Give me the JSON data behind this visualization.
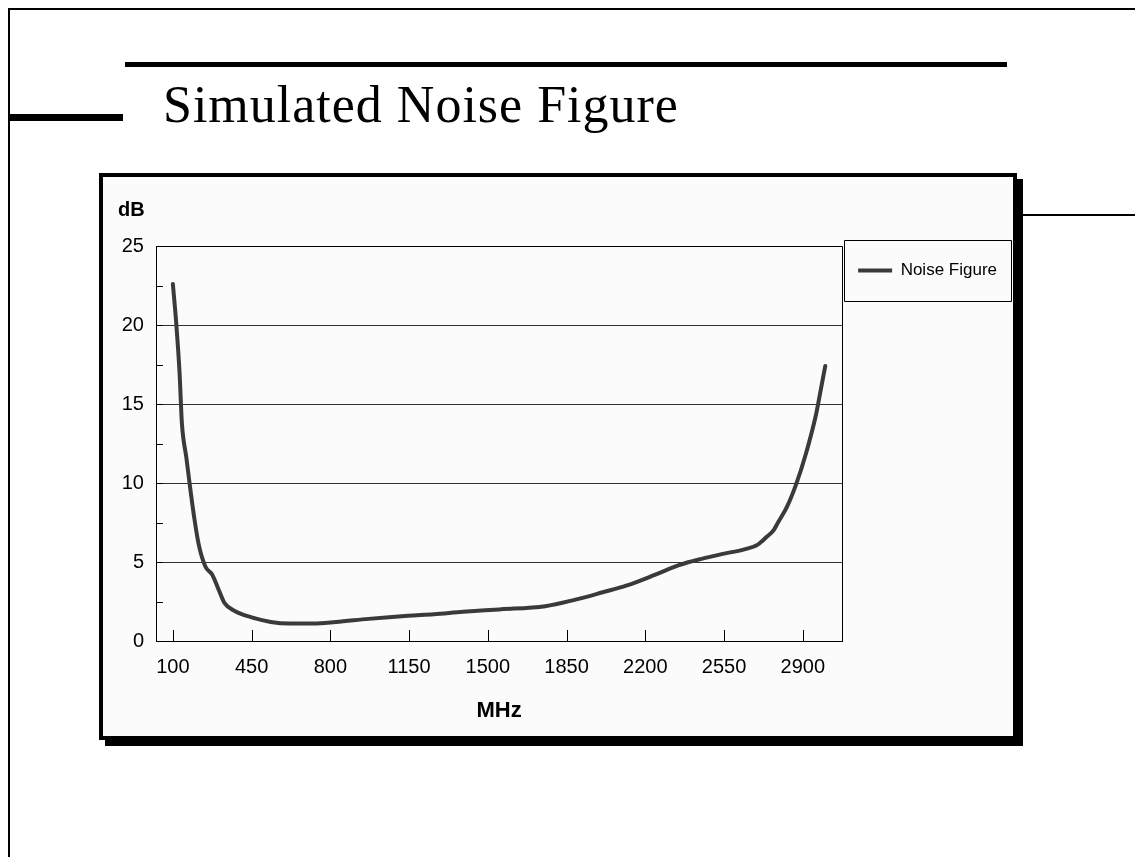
{
  "chart_data": {
    "type": "line",
    "title": "Simulated Noise Figure",
    "xlabel": "MHz",
    "ylabel": "dB",
    "x": [
      100,
      115,
      130,
      140,
      160,
      175,
      195,
      215,
      245,
      275,
      305,
      330,
      375,
      450,
      535,
      620,
      725,
      825,
      970,
      1145,
      1260,
      1390,
      1550,
      1755,
      1885,
      2015,
      2115,
      2245,
      2350,
      2450,
      2540,
      2640,
      2700,
      2740,
      2770,
      2790,
      2830,
      2870,
      2915,
      2960,
      2980,
      3000
    ],
    "series": [
      {
        "name": "Noise Figure",
        "color": "#3a3a3a",
        "values": [
          22.6,
          20.1,
          16.9,
          13.8,
          11.6,
          9.9,
          7.8,
          6.1,
          4.7,
          4.2,
          3.2,
          2.4,
          1.9,
          1.5,
          1.2,
          1.1,
          1.1,
          1.2,
          1.4,
          1.6,
          1.7,
          1.85,
          2.0,
          2.2,
          2.6,
          3.1,
          3.5,
          4.2,
          4.8,
          5.2,
          5.5,
          5.8,
          6.1,
          6.6,
          7.0,
          7.5,
          8.5,
          9.9,
          11.9,
          14.4,
          15.9,
          17.4
        ]
      }
    ],
    "xlim": [
      25,
      3075
    ],
    "xticks": [
      100,
      450,
      800,
      1150,
      1500,
      1850,
      2200,
      2550,
      2900
    ],
    "ylim": [
      0,
      25
    ],
    "yticks": [
      0,
      {
        "value": 2.5,
        "label": null
      },
      5,
      {
        "value": 7.5,
        "label": null
      },
      10,
      {
        "value": 12.5,
        "label": null
      },
      15,
      {
        "value": 17.5,
        "label": null
      },
      20,
      {
        "value": 22.5,
        "label": null
      },
      25
    ],
    "grid": "y",
    "legend": "right",
    "marker": "none",
    "line_style": "solid"
  }
}
